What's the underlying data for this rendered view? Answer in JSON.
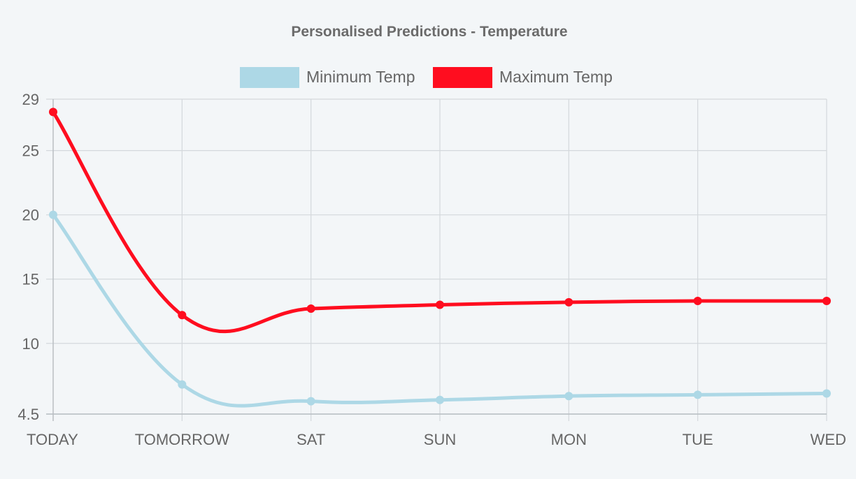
{
  "chart_data": {
    "type": "line",
    "title": "Personalised Predictions - Temperature",
    "categories": [
      "TODAY",
      "TOMORROW",
      "SAT",
      "SUN",
      "MON",
      "TUE",
      "WED"
    ],
    "y_ticks": [
      4.5,
      10,
      15,
      20,
      25,
      29
    ],
    "ylim": [
      4.5,
      29
    ],
    "grid": true,
    "legend_position": "top",
    "series": [
      {
        "name": "Minimum Temp",
        "color": "#add8e6",
        "values": [
          20,
          6.8,
          5.5,
          5.6,
          5.9,
          6.0,
          6.1
        ]
      },
      {
        "name": "Maximum Temp",
        "color": "#ff0d1f",
        "values": [
          28,
          12.2,
          12.7,
          13.0,
          13.2,
          13.3,
          13.3
        ]
      }
    ]
  }
}
